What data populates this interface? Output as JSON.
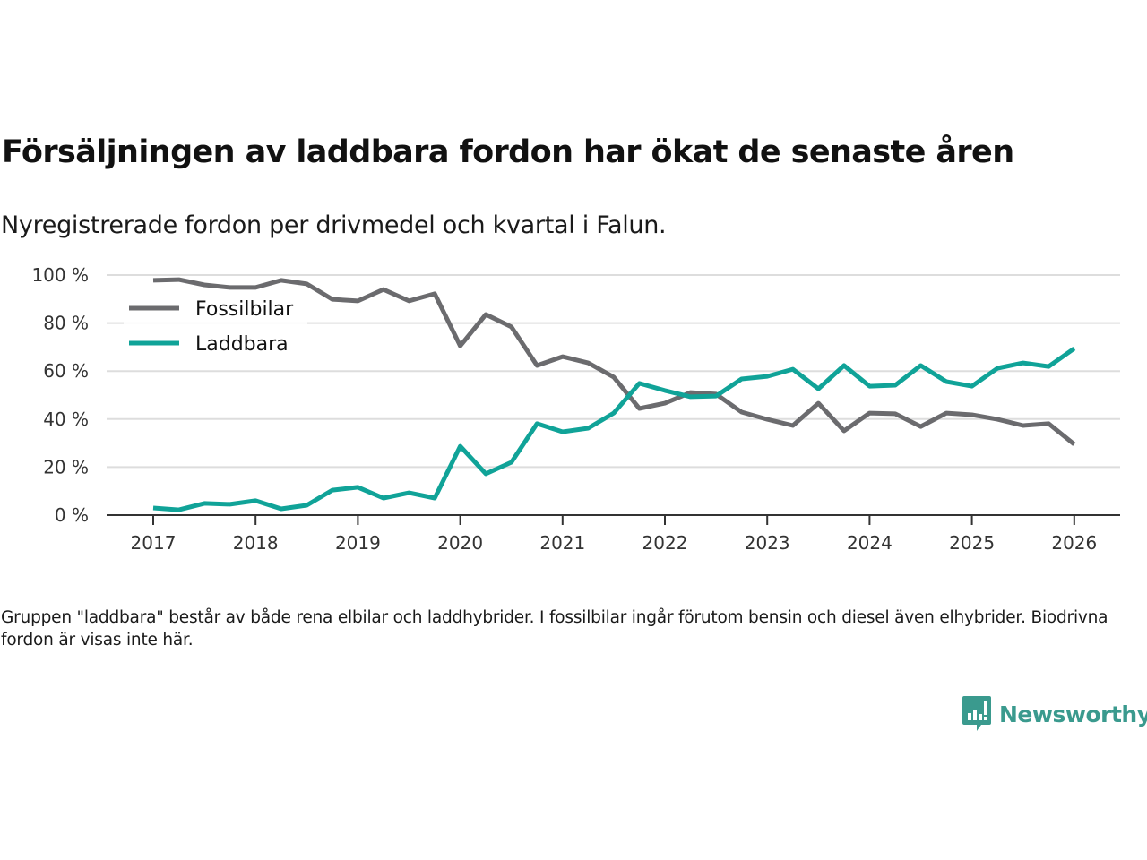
{
  "header": {
    "title": "Försäljningen av laddbara fordon har ökat de senaste åren",
    "subtitle": "Nyregistrerade fordon per drivmedel och kvartal i Falun."
  },
  "footer": {
    "note": "Gruppen \"laddbara\" består av både rena elbilar och laddhybrider. I fossilbilar ingår förutom bensin och diesel även elhybrider. Biodrivna fordon är visas inte här.",
    "brand": "Newsworthy",
    "brand_icon": "newsworthy-logo-icon"
  },
  "chart_data": {
    "type": "line",
    "title": "Försäljningen av laddbara fordon har ökat de senaste åren",
    "subtitle": "Nyregistrerade fordon per drivmedel och kvartal i Falun.",
    "xlabel": "",
    "ylabel": "",
    "x_start": 2017,
    "x_step": 0.25,
    "xlim": [
      2016.55,
      2026.45
    ],
    "ylim": [
      0,
      100
    ],
    "x_ticks": [
      2017,
      2018,
      2019,
      2020,
      2021,
      2022,
      2023,
      2024,
      2025,
      2026
    ],
    "x_tick_labels": [
      "2017",
      "2018",
      "2019",
      "2020",
      "2021",
      "2022",
      "2023",
      "2024",
      "2025",
      "2026"
    ],
    "y_ticks": [
      0,
      20,
      40,
      60,
      80,
      100
    ],
    "y_tick_labels": [
      "0 %",
      "20 %",
      "40 %",
      "60 %",
      "80 %",
      "100 %"
    ],
    "grid": true,
    "legend_position": "top-left",
    "series": [
      {
        "name": "Fossilbilar",
        "color": "#6b6b6e",
        "values": [
          97.8,
          98.1,
          95.9,
          94.8,
          94.8,
          97.8,
          96.3,
          89.9,
          89.2,
          94.0,
          89.2,
          92.2,
          70.5,
          83.6,
          78.4,
          62.3,
          66.0,
          63.4,
          57.5,
          44.4,
          46.6,
          51.1,
          50.4,
          42.9,
          39.9,
          37.3,
          46.6,
          35.1,
          42.5,
          42.2,
          36.9,
          42.5,
          41.8,
          39.9,
          37.3,
          38.1,
          29.5
        ]
      },
      {
        "name": "Laddbara",
        "color": "#10a398",
        "values": [
          3.0,
          2.2,
          4.9,
          4.5,
          6.0,
          2.6,
          4.1,
          10.4,
          11.6,
          7.1,
          9.3,
          7.1,
          28.7,
          17.2,
          22.0,
          38.1,
          34.7,
          36.2,
          42.5,
          54.9,
          51.9,
          49.3,
          49.6,
          56.7,
          57.8,
          60.8,
          52.6,
          62.3,
          53.7,
          54.1,
          62.3,
          55.6,
          53.7,
          61.2,
          63.4,
          61.9,
          69.4
        ]
      }
    ]
  }
}
